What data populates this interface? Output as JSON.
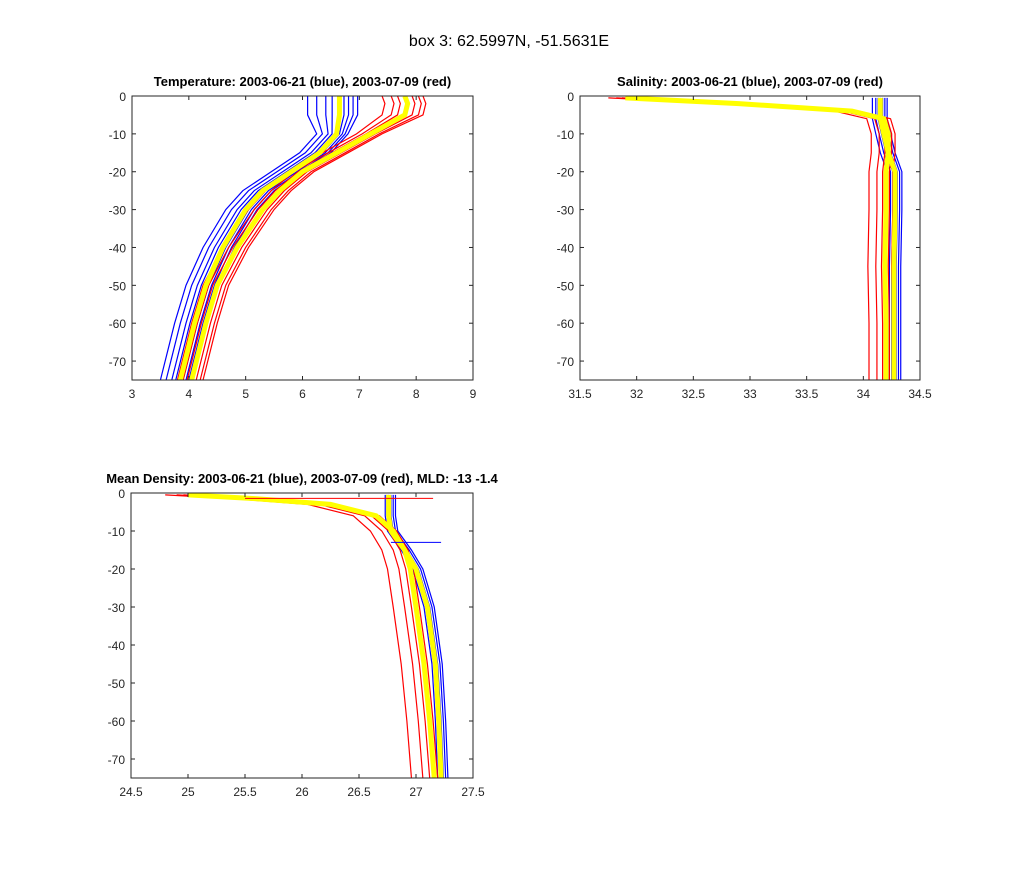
{
  "suptitle": "box 3: 62.5997N, -51.5631E",
  "colors": {
    "blue": "#0000ff",
    "red": "#ff0000",
    "mean": "#ffff00"
  },
  "chart_data": [
    {
      "type": "line",
      "title": "Temperature: 2003-06-21 (blue), 2003-07-09 (red)",
      "xlim": [
        3,
        9
      ],
      "ylim": [
        -75,
        0
      ],
      "xticks": [
        "3",
        "4",
        "5",
        "6",
        "7",
        "8",
        "9"
      ],
      "yticks": [
        "0",
        "-10",
        "-20",
        "-30",
        "-40",
        "-50",
        "-60",
        "-70"
      ],
      "depth": [
        0,
        -2,
        -5,
        -10,
        -15,
        -20,
        -25,
        -30,
        -40,
        -50,
        -60,
        -75
      ],
      "series": [
        {
          "name": "2003-06-21",
          "color": "blue",
          "mean": [
            6.65,
            6.65,
            6.65,
            6.6,
            6.3,
            5.8,
            5.3,
            5.0,
            4.6,
            4.3,
            4.1,
            3.85
          ],
          "spread": [
            -0.35,
            -0.25,
            -0.15,
            -0.08,
            0,
            0.05,
            0.1,
            0.15,
            0.2
          ]
        },
        {
          "name": "2003-07-09",
          "color": "red",
          "mean": [
            7.8,
            7.85,
            7.8,
            7.2,
            6.6,
            6.0,
            5.6,
            5.3,
            4.85,
            4.5,
            4.3,
            4.05
          ],
          "spread": [
            -0.25,
            -0.15,
            -0.08,
            0,
            0.08,
            0.15,
            0.2
          ]
        }
      ],
      "hlines": []
    },
    {
      "type": "line",
      "title": "Salinity: 2003-06-21 (blue), 2003-07-09 (red)",
      "xlim": [
        31.5,
        34.5
      ],
      "ylim": [
        -75,
        0
      ],
      "xticks": [
        "31.5",
        "32",
        "32.5",
        "33",
        "33.5",
        "34",
        "34.5"
      ],
      "yticks": [
        "0",
        "-10",
        "-20",
        "-30",
        "-40",
        "-50",
        "-60",
        "-70"
      ],
      "depth": [
        -0.5,
        -2,
        -4,
        -6,
        -10,
        -15,
        -20,
        -30,
        -45,
        -60,
        -75
      ],
      "series": [
        {
          "name": "2003-06-21",
          "color": "blue",
          "mean": [
            34.15,
            34.15,
            34.15,
            34.15,
            34.18,
            34.22,
            34.28,
            34.28,
            34.27,
            34.27,
            34.27
          ],
          "spread": [
            -0.07,
            -0.04,
            -0.02,
            0,
            0.02,
            0.04,
            0.06
          ]
        },
        {
          "name": "2003-07-09",
          "color": "red",
          "mean": [
            31.9,
            32.9,
            33.9,
            34.18,
            34.22,
            34.22,
            34.2,
            34.2,
            34.19,
            34.2,
            34.2
          ],
          "spread": [
            -0.15,
            -0.08,
            -0.03,
            0,
            0.03,
            0.06
          ]
        }
      ],
      "hlines": []
    },
    {
      "type": "line",
      "title": "Mean Density: 2003-06-21 (blue), 2003-07-09 (red), MLD: -13 -1.4",
      "xlim": [
        24.5,
        27.5
      ],
      "ylim": [
        -75,
        0
      ],
      "xticks": [
        "24.5",
        "25",
        "25.5",
        "26",
        "26.5",
        "27",
        "27.5"
      ],
      "yticks": [
        "0",
        "-10",
        "-20",
        "-30",
        "-40",
        "-50",
        "-60",
        "-70"
      ],
      "depth": [
        -0.5,
        -1.5,
        -3,
        -6,
        -10,
        -15,
        -20,
        -30,
        -45,
        -60,
        -75
      ],
      "series": [
        {
          "name": "2003-06-21",
          "color": "blue",
          "mean": [
            26.76,
            26.76,
            26.76,
            26.76,
            26.78,
            26.9,
            27.0,
            27.1,
            27.17,
            27.2,
            27.22
          ],
          "spread": [
            -0.03,
            -0.015,
            0,
            0.02,
            0.04,
            0.06
          ]
        },
        {
          "name": "2003-07-09",
          "color": "red",
          "mean": [
            25.0,
            25.6,
            26.25,
            26.65,
            26.8,
            26.9,
            26.95,
            27.0,
            27.07,
            27.12,
            27.16
          ],
          "spread": [
            -0.2,
            -0.1,
            -0.04,
            0,
            0.03
          ]
        }
      ],
      "hlines": [
        {
          "name": "mld-red",
          "color": "red",
          "y": -1.4,
          "x": [
            25.5,
            27.15
          ]
        },
        {
          "name": "mld-blue",
          "color": "blue",
          "y": -13,
          "x": [
            26.78,
            27.22
          ]
        }
      ]
    }
  ]
}
